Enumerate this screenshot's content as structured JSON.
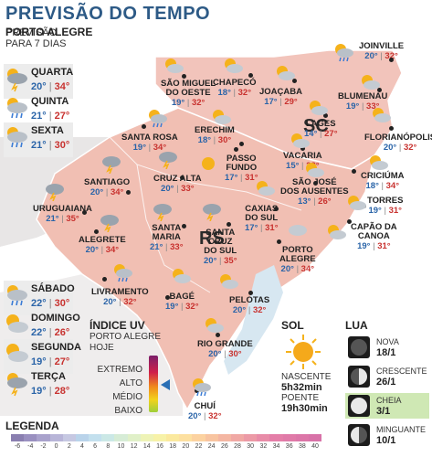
{
  "title": "PREVISÃO DO TEMPO",
  "sidebar": {
    "city": "PORTO ALEGRE",
    "subtitle_line1": "PREVISÃO",
    "subtitle_line2": "PARA 7 DIAS",
    "days": [
      {
        "name": "QUARTA",
        "min": "20°",
        "max": "34°",
        "icon": "storm-sun-icon"
      },
      {
        "name": "QUINTA",
        "min": "21°",
        "max": "27°",
        "icon": "rain-sun-icon"
      },
      {
        "name": "SEXTA",
        "min": "21°",
        "max": "30°",
        "icon": "rain-sun-icon"
      },
      {
        "name": "SÁBADO",
        "min": "22°",
        "max": "30°",
        "icon": "rain-sun-icon"
      },
      {
        "name": "DOMINGO",
        "min": "22°",
        "max": "26°",
        "icon": "cloud-sun-icon"
      },
      {
        "name": "SEGUNDA",
        "min": "19°",
        "max": "27°",
        "icon": "cloud-sun-icon"
      },
      {
        "name": "TERÇA",
        "min": "19°",
        "max": "28°",
        "icon": "storm-sun-icon"
      }
    ]
  },
  "map": {
    "state_labels": {
      "sc": "SC",
      "rs": "RS"
    },
    "cities": [
      {
        "name": "JOINVILLE",
        "min": "20°",
        "max": "32°"
      },
      {
        "name": "SÃO MIGUEL DO OESTE",
        "min": "19°",
        "max": "32°"
      },
      {
        "name": "CHAPECÓ",
        "min": "18°",
        "max": "32°"
      },
      {
        "name": "JOAÇABA",
        "min": "17°",
        "max": "29°"
      },
      {
        "name": "BLUMENAU",
        "min": "19°",
        "max": "33°"
      },
      {
        "name": "LAGES",
        "min": "14°",
        "max": "27°"
      },
      {
        "name": "FLORIANÓPOLIS",
        "min": "20°",
        "max": "32°"
      },
      {
        "name": "SANTA ROSA",
        "min": "19°",
        "max": "34°"
      },
      {
        "name": "ERECHIM",
        "min": "18°",
        "max": "30°"
      },
      {
        "name": "PASSO FUNDO",
        "min": "17°",
        "max": "31°"
      },
      {
        "name": "VACARIA",
        "min": "15°",
        "max": "28°"
      },
      {
        "name": "CRICIÚMA",
        "min": "18°",
        "max": "34°"
      },
      {
        "name": "SANTIAGO",
        "min": "20°",
        "max": "34°"
      },
      {
        "name": "CRUZ ALTA",
        "min": "20°",
        "max": "33°"
      },
      {
        "name": "SÃO JOSÉ DOS AUSENTES",
        "min": "13°",
        "max": "26°"
      },
      {
        "name": "TORRES",
        "min": "19°",
        "max": "31°"
      },
      {
        "name": "URUGUAIANA",
        "min": "21°",
        "max": "35°"
      },
      {
        "name": "ALEGRETE",
        "min": "20°",
        "max": "34°"
      },
      {
        "name": "SANTA MARIA",
        "min": "21°",
        "max": "33°"
      },
      {
        "name": "SANTA CRUZ DO SUL",
        "min": "20°",
        "max": "35°"
      },
      {
        "name": "CAXIAS DO SUL",
        "min": "17°",
        "max": "31°"
      },
      {
        "name": "CAPÃO DA CANOA",
        "min": "19°",
        "max": "31°"
      },
      {
        "name": "PORTO ALEGRE",
        "min": "20°",
        "max": "34°"
      },
      {
        "name": "LIVRAMENTO",
        "min": "20°",
        "max": "32°"
      },
      {
        "name": "BAGÉ",
        "min": "19°",
        "max": "32°"
      },
      {
        "name": "PELOTAS",
        "min": "20°",
        "max": "32°"
      },
      {
        "name": "RIO GRANDE",
        "min": "20°",
        "max": "30°"
      },
      {
        "name": "CHUÍ",
        "min": "20°",
        "max": "32°"
      }
    ]
  },
  "uv": {
    "title": "ÍNDICE UV",
    "sub1": "PORTO ALEGRE",
    "sub2": "HOJE",
    "levels": [
      "EXTREMO",
      "ALTO",
      "MÉDIO",
      "BAIXO"
    ],
    "current": "ALTO"
  },
  "sol": {
    "title": "SOL",
    "sunrise_label": "NASCENTE",
    "sunrise": "5h32min",
    "sunset_label": "POENTE",
    "sunset": "19h30min"
  },
  "lua": {
    "title": "LUA",
    "phases": [
      {
        "name": "NOVA",
        "date": "18/1"
      },
      {
        "name": "CRESCENTE",
        "date": "26/1"
      },
      {
        "name": "CHEIA",
        "date": "3/1"
      },
      {
        "name": "MINGUANTE",
        "date": "10/1"
      }
    ]
  },
  "legend": {
    "title": "LEGENDA",
    "ticks": [
      "-6",
      "-4",
      "-2",
      "0",
      "2",
      "4",
      "6",
      "8",
      "10",
      "12",
      "14",
      "16",
      "18",
      "20",
      "22",
      "24",
      "26",
      "28",
      "30",
      "32",
      "34",
      "36",
      "38",
      "40"
    ],
    "colors": [
      "#8a7fb0",
      "#9a90c0",
      "#a9a2cc",
      "#b8b5d8",
      "#c6c8e2",
      "#b9d3ea",
      "#c3e0ee",
      "#cbe8e6",
      "#d6ecd6",
      "#e0f0c8",
      "#eef3b6",
      "#f7f2a8",
      "#fbe99e",
      "#fde0a0",
      "#fcd2a0",
      "#f8c4a0",
      "#f4b6a2",
      "#f0a8a4",
      "#ec9aa6",
      "#e88ca8",
      "#e47ea8",
      "#e07aa8",
      "#dc76a8",
      "#d872a8"
    ]
  }
}
